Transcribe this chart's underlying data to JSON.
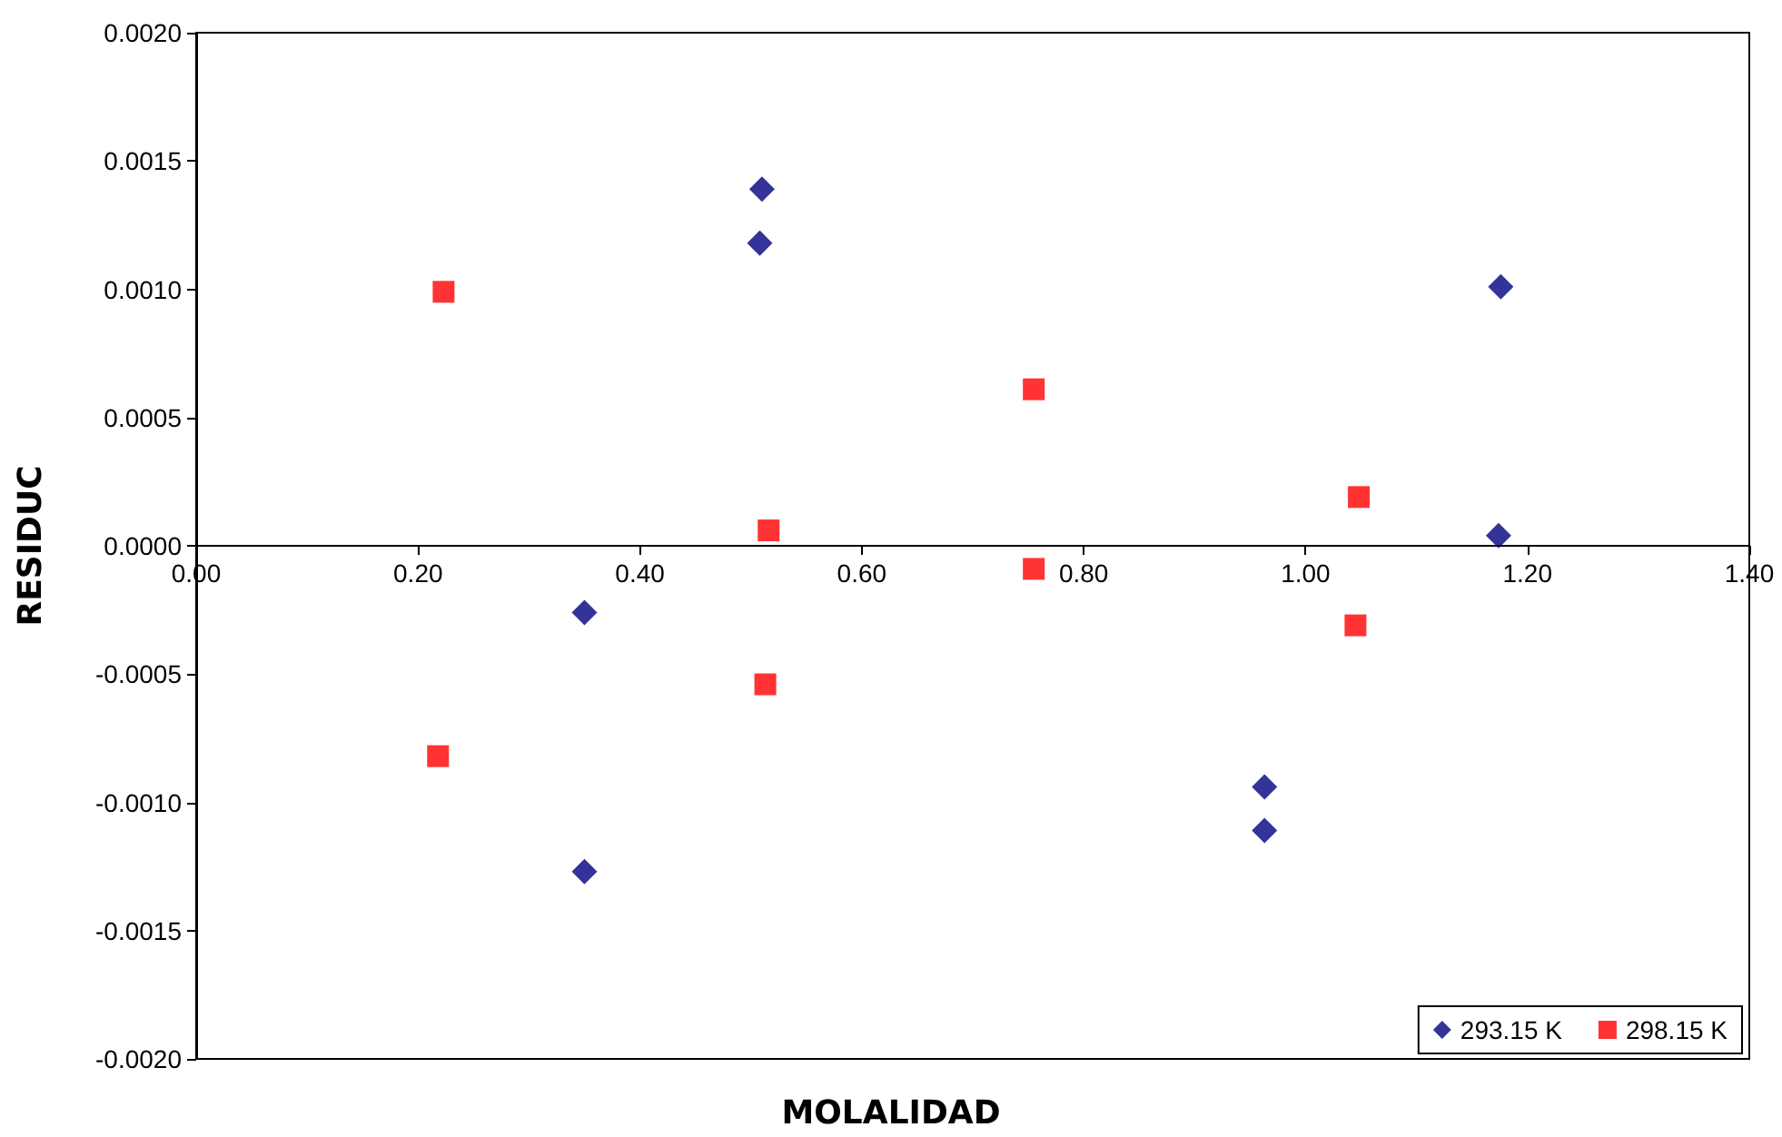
{
  "chart_data": {
    "type": "scatter",
    "xlabel": "MOLALIDAD",
    "ylabel": "RESIDUC",
    "xlim": [
      0,
      1.4
    ],
    "ylim": [
      -0.002,
      0.002
    ],
    "xticks": [
      {
        "value": 0,
        "label": "0.00"
      },
      {
        "value": 0.2,
        "label": "0.20"
      },
      {
        "value": 0.4,
        "label": "0.40"
      },
      {
        "value": 0.6,
        "label": "0.60"
      },
      {
        "value": 0.8,
        "label": "0.80"
      },
      {
        "value": 1,
        "label": "1.00"
      },
      {
        "value": 1.2,
        "label": "1.20"
      },
      {
        "value": 1.4,
        "label": "1.40"
      }
    ],
    "yticks": [
      {
        "value": -0.002,
        "label": "-0.0020"
      },
      {
        "value": -0.0015,
        "label": "-0.0015"
      },
      {
        "value": -0.001,
        "label": "-0.0010"
      },
      {
        "value": -0.0005,
        "label": "-0.0005"
      },
      {
        "value": 0,
        "label": "0.0000"
      },
      {
        "value": 0.0005,
        "label": "0.0005"
      },
      {
        "value": 0.001,
        "label": "0.0010"
      },
      {
        "value": 0.0015,
        "label": "0.0015"
      },
      {
        "value": 0.002,
        "label": "0.0020"
      }
    ],
    "grid": false,
    "legend": "bottom right",
    "series": [
      {
        "name": "293.15 K",
        "color": "#000080",
        "marker": "diamond",
        "x": [
          0.51,
          0.508,
          1.176,
          1.174,
          0.35,
          0.35,
          0.963,
          0.963
        ],
        "values": [
          0.00139,
          0.00118,
          0.00101,
          4e-05,
          -0.00026,
          -0.00127,
          -0.00094,
          -0.00111
        ]
      },
      {
        "name": "298.15 K",
        "color": "#ff0000",
        "marker": "square",
        "x": [
          0.223,
          0.755,
          1.048,
          0.516,
          0.755,
          1.045,
          0.513,
          0.218
        ],
        "values": [
          0.00099,
          0.00061,
          0.00019,
          6e-05,
          -9e-05,
          -0.00031,
          -0.00054,
          -0.00082
        ]
      }
    ]
  }
}
